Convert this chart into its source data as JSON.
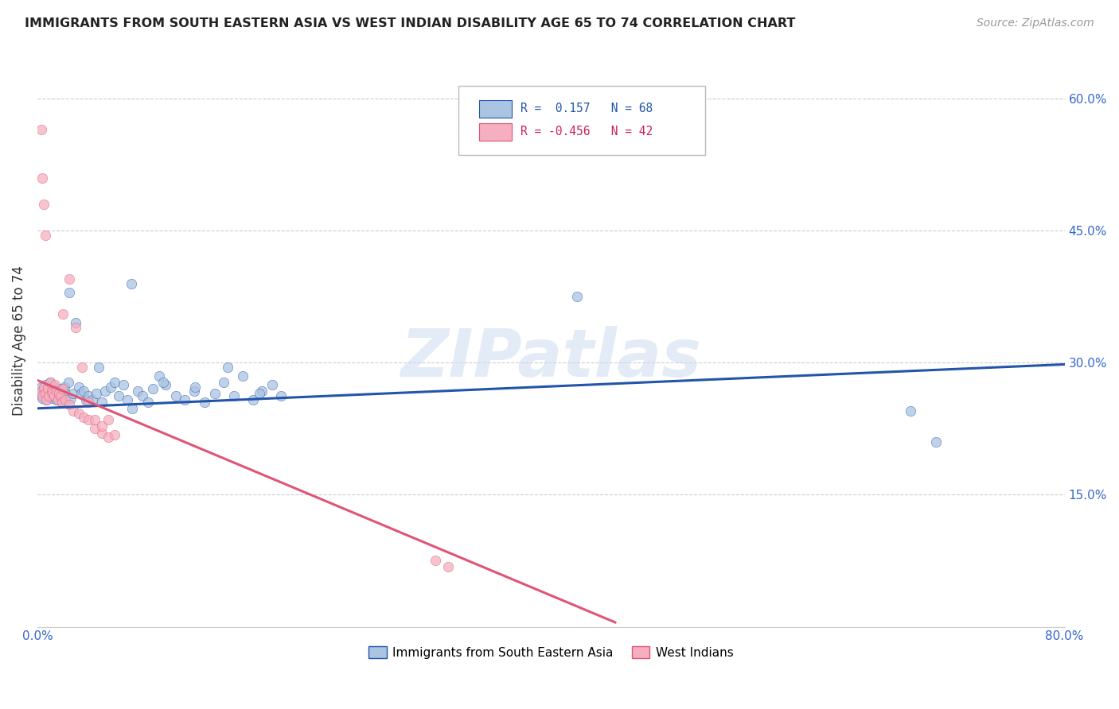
{
  "title": "IMMIGRANTS FROM SOUTH EASTERN ASIA VS WEST INDIAN DISABILITY AGE 65 TO 74 CORRELATION CHART",
  "source": "Source: ZipAtlas.com",
  "ylabel": "Disability Age 65 to 74",
  "xmin": 0.0,
  "xmax": 0.8,
  "ymin": 0.0,
  "ymax": 0.65,
  "r_blue": 0.157,
  "n_blue": 68,
  "r_pink": -0.456,
  "n_pink": 42,
  "blue_color": "#aac4e2",
  "pink_color": "#f5afc0",
  "blue_line_color": "#2255aa",
  "pink_line_color": "#e05575",
  "watermark": "ZIPatlas",
  "blue_scatter_x": [
    0.002,
    0.003,
    0.004,
    0.005,
    0.006,
    0.007,
    0.008,
    0.009,
    0.01,
    0.011,
    0.012,
    0.013,
    0.014,
    0.015,
    0.016,
    0.017,
    0.018,
    0.019,
    0.02,
    0.021,
    0.022,
    0.024,
    0.026,
    0.028,
    0.03,
    0.032,
    0.034,
    0.036,
    0.038,
    0.04,
    0.043,
    0.046,
    0.05,
    0.053,
    0.057,
    0.06,
    0.063,
    0.067,
    0.07,
    0.074,
    0.078,
    0.082,
    0.086,
    0.09,
    0.095,
    0.1,
    0.108,
    0.115,
    0.122,
    0.13,
    0.138,
    0.145,
    0.153,
    0.16,
    0.168,
    0.175,
    0.183,
    0.19,
    0.025,
    0.048,
    0.073,
    0.098,
    0.123,
    0.148,
    0.173,
    0.42,
    0.68,
    0.7
  ],
  "blue_scatter_y": [
    0.265,
    0.272,
    0.26,
    0.268,
    0.275,
    0.258,
    0.27,
    0.262,
    0.278,
    0.265,
    0.26,
    0.268,
    0.272,
    0.258,
    0.265,
    0.27,
    0.262,
    0.255,
    0.268,
    0.272,
    0.265,
    0.278,
    0.26,
    0.265,
    0.345,
    0.272,
    0.265,
    0.268,
    0.258,
    0.262,
    0.258,
    0.265,
    0.255,
    0.268,
    0.272,
    0.278,
    0.262,
    0.275,
    0.258,
    0.248,
    0.268,
    0.262,
    0.255,
    0.27,
    0.285,
    0.275,
    0.262,
    0.258,
    0.268,
    0.255,
    0.265,
    0.278,
    0.262,
    0.285,
    0.258,
    0.268,
    0.275,
    0.262,
    0.38,
    0.295,
    0.39,
    0.278,
    0.272,
    0.295,
    0.265,
    0.375,
    0.245,
    0.21
  ],
  "pink_scatter_x": [
    0.003,
    0.004,
    0.005,
    0.006,
    0.007,
    0.008,
    0.009,
    0.01,
    0.011,
    0.012,
    0.013,
    0.014,
    0.015,
    0.016,
    0.017,
    0.018,
    0.019,
    0.02,
    0.022,
    0.025,
    0.028,
    0.032,
    0.036,
    0.04,
    0.045,
    0.05,
    0.055,
    0.06,
    0.003,
    0.004,
    0.005,
    0.006,
    0.02,
    0.025,
    0.03,
    0.035,
    0.04,
    0.045,
    0.05,
    0.055,
    0.31,
    0.32
  ],
  "pink_scatter_y": [
    0.268,
    0.262,
    0.272,
    0.265,
    0.258,
    0.27,
    0.262,
    0.278,
    0.268,
    0.265,
    0.262,
    0.275,
    0.268,
    0.258,
    0.265,
    0.262,
    0.255,
    0.27,
    0.258,
    0.252,
    0.245,
    0.242,
    0.238,
    0.235,
    0.225,
    0.22,
    0.215,
    0.218,
    0.565,
    0.51,
    0.48,
    0.445,
    0.355,
    0.395,
    0.34,
    0.295,
    0.255,
    0.235,
    0.228,
    0.235,
    0.075,
    0.068
  ],
  "blue_trend_x": [
    0.0,
    0.8
  ],
  "blue_trend_y": [
    0.248,
    0.298
  ],
  "pink_trend_x": [
    0.0,
    0.45
  ],
  "pink_trend_y": [
    0.28,
    0.005
  ]
}
